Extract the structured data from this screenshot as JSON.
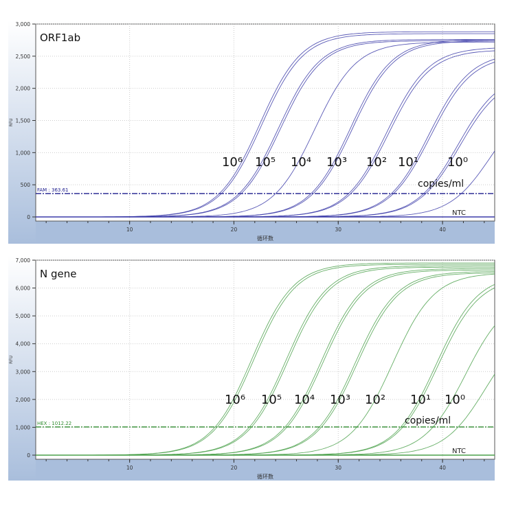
{
  "chart_data": [
    {
      "type": "line",
      "title": "ORF1ab",
      "xlabel": "循环数",
      "ylabel": "RFU",
      "xlim": [
        1,
        45
      ],
      "ylim": [
        0,
        3000
      ],
      "xticks": [
        10,
        20,
        30,
        40
      ],
      "yticks": [
        0,
        500,
        1000,
        1500,
        2000,
        2500,
        3000
      ],
      "ytick_labels": [
        "0",
        "500",
        "1,000",
        "1,500",
        "2,000",
        "2,500",
        "3,000"
      ],
      "grid": true,
      "color": "#3b3ba8",
      "threshold": {
        "label": "FAM : 363.61",
        "value": 363.61,
        "color": "#1a1a8c"
      },
      "series": [
        {
          "ct": 18.6,
          "plateau": 2880
        },
        {
          "ct": 18.8,
          "plateau": 2850
        },
        {
          "ct": 20.5,
          "plateau": 2760
        },
        {
          "ct": 20.7,
          "plateau": 2740
        },
        {
          "ct": 24.0,
          "plateau": 2720
        },
        {
          "ct": 27.4,
          "plateau": 2760
        },
        {
          "ct": 27.6,
          "plateau": 2740
        },
        {
          "ct": 31.0,
          "plateau": 2640
        },
        {
          "ct": 31.2,
          "plateau": 2600
        },
        {
          "ct": 35.1,
          "plateau": 2560
        },
        {
          "ct": 35.3,
          "plateau": 2520
        },
        {
          "ct": 38.2,
          "plateau": 2250
        },
        {
          "ct": 38.4,
          "plateau": 2200
        },
        {
          "ct": 41.8,
          "plateau": 1900
        }
      ],
      "annotations": [
        "10⁶",
        "10⁵",
        "10⁴",
        "10³",
        "10²",
        "10¹",
        "10⁰"
      ],
      "unit_label": "copies/ml",
      "ntc_label": "NTC"
    },
    {
      "type": "line",
      "title": "N gene",
      "xlabel": "循环数",
      "ylabel": "RFU",
      "xlim": [
        1,
        45
      ],
      "ylim": [
        0,
        7000
      ],
      "xticks": [
        10,
        20,
        30,
        40
      ],
      "yticks": [
        0,
        1000,
        2000,
        3000,
        4000,
        5000,
        6000,
        7000
      ],
      "ytick_labels": [
        "0",
        "1,000",
        "2,000",
        "3,000",
        "4,000",
        "5,000",
        "6,000",
        "7,000"
      ],
      "grid": true,
      "color": "#4aa04a",
      "threshold": {
        "label": "HEX : 1012.22",
        "value": 1012.22,
        "color": "#2e8b2e"
      },
      "series": [
        {
          "ct": 18.2,
          "plateau": 6900
        },
        {
          "ct": 18.4,
          "plateau": 6850
        },
        {
          "ct": 21.5,
          "plateau": 6800
        },
        {
          "ct": 21.7,
          "plateau": 6750
        },
        {
          "ct": 24.9,
          "plateau": 6700
        },
        {
          "ct": 25.1,
          "plateau": 6650
        },
        {
          "ct": 28.2,
          "plateau": 6600
        },
        {
          "ct": 28.4,
          "plateau": 6550
        },
        {
          "ct": 31.8,
          "plateau": 6550
        },
        {
          "ct": 36.0,
          "plateau": 6500
        },
        {
          "ct": 36.2,
          "plateau": 6400
        },
        {
          "ct": 39.1,
          "plateau": 5800
        },
        {
          "ct": 41.5,
          "plateau": 4800
        }
      ],
      "annotations": [
        "10⁶",
        "10⁵",
        "10⁴",
        "10³",
        "10²",
        "10¹",
        "10⁰"
      ],
      "unit_label": "copies/ml",
      "ntc_label": "NTC"
    }
  ]
}
